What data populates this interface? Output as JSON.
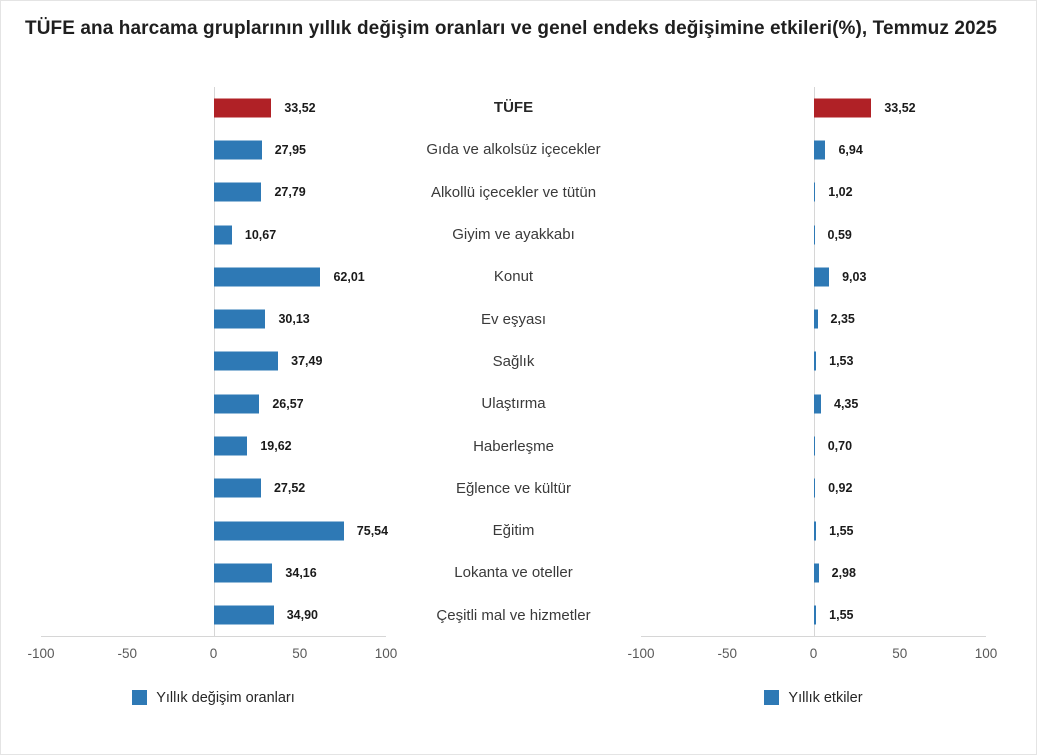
{
  "title": "TÜFE ana harcama gruplarının yıllık değişim oranları ve genel endeks değişimine etkileri(%), Temmuz 2025",
  "colors": {
    "bar_blue": "#2e79b5",
    "bar_red": "#b02126",
    "axis_line": "#d6d6d6",
    "tick_text": "#595959",
    "value_text": "#1a1a1a"
  },
  "center_labels": [
    "TÜFE",
    "Gıda ve alkolsüz içecekler",
    "Alkollü içecekler ve tütün",
    "Giyim ve ayakkabı",
    "Konut",
    "Ev eşyası",
    "Sağlık",
    "Ulaştırma",
    "Haberleşme",
    "Eğlence ve kültür",
    "Eğitim",
    "Lokanta ve oteller",
    "Çeşitli mal ve hizmetler"
  ],
  "chart_data": [
    {
      "type": "bar",
      "orientation": "horizontal",
      "legend": "Yıllık değişim oranları",
      "legend_position": "bottom",
      "grid": false,
      "categories": [
        "TÜFE",
        "Gıda ve alkolsüz içecekler",
        "Alkollü içecekler ve tütün",
        "Giyim ve ayakkabı",
        "Konut",
        "Ev eşyası",
        "Sağlık",
        "Ulaştırma",
        "Haberleşme",
        "Eğlence ve kültür",
        "Eğitim",
        "Lokanta ve oteller",
        "Çeşitli mal ve hizmetler"
      ],
      "values": [
        33.52,
        27.95,
        27.79,
        10.67,
        62.01,
        30.13,
        37.49,
        26.57,
        19.62,
        27.52,
        75.54,
        34.16,
        34.9
      ],
      "value_labels": [
        "33,52",
        "27,95",
        "27,79",
        "10,67",
        "62,01",
        "30,13",
        "37,49",
        "26,57",
        "19,62",
        "27,52",
        "75,54",
        "34,16",
        "34,90"
      ],
      "highlight_index": 0,
      "xlim": [
        -100,
        100
      ],
      "xticks": [
        -100,
        -50,
        0,
        50,
        100
      ],
      "xtick_labels": [
        "-100",
        "-50",
        "0",
        "50",
        "100"
      ]
    },
    {
      "type": "bar",
      "orientation": "horizontal",
      "legend": "Yıllık etkiler",
      "legend_position": "bottom",
      "grid": false,
      "categories": [
        "TÜFE",
        "Gıda ve alkolsüz içecekler",
        "Alkollü içecekler ve tütün",
        "Giyim ve ayakkabı",
        "Konut",
        "Ev eşyası",
        "Sağlık",
        "Ulaştırma",
        "Haberleşme",
        "Eğlence ve kültür",
        "Eğitim",
        "Lokanta ve oteller",
        "Çeşitli mal ve hizmetler"
      ],
      "values": [
        33.52,
        6.94,
        1.02,
        0.59,
        9.03,
        2.35,
        1.53,
        4.35,
        0.7,
        0.92,
        1.55,
        2.98,
        1.55
      ],
      "value_labels": [
        "33,52",
        "6,94",
        "1,02",
        "0,59",
        "9,03",
        "2,35",
        "1,53",
        "4,35",
        "0,70",
        "0,92",
        "1,55",
        "2,98",
        "1,55"
      ],
      "highlight_index": 0,
      "xlim": [
        -100,
        100
      ],
      "xticks": [
        -100,
        -50,
        0,
        50,
        100
      ],
      "xtick_labels": [
        "-100",
        "-50",
        "0",
        "50",
        "100"
      ]
    }
  ]
}
